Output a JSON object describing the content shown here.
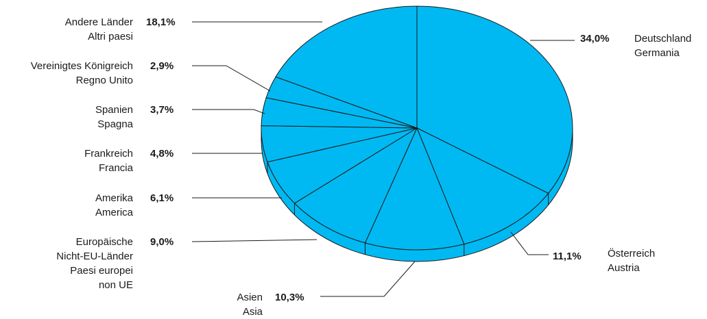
{
  "chart_data": {
    "type": "pie",
    "style": "3d",
    "colors": {
      "fill": "#00B9F2",
      "outline": "#1a1a1a"
    },
    "slices": [
      {
        "name_de": "Deutschland",
        "name_it": "Germania",
        "value": 34.0,
        "label": "34,0%"
      },
      {
        "name_de": "Österreich",
        "name_it": "Austria",
        "value": 11.1,
        "label": "11,1%"
      },
      {
        "name_de": "Asien",
        "name_it": "Asia",
        "value": 10.3,
        "label": "10,3%"
      },
      {
        "name_de": "Europäische Nicht-EU-Länder",
        "name_it": "Paesi europei non UE",
        "value": 9.0,
        "label": "9,0%"
      },
      {
        "name_de": "Amerika",
        "name_it": "America",
        "value": 6.1,
        "label": "6,1%"
      },
      {
        "name_de": "Frankreich",
        "name_it": "Francia",
        "value": 4.8,
        "label": "4,8%"
      },
      {
        "name_de": "Spanien",
        "name_it": "Spagna",
        "value": 3.7,
        "label": "3,7%"
      },
      {
        "name_de": "Vereinigtes Königreich",
        "name_it": "Regno Unito",
        "value": 2.9,
        "label": "2,9%"
      },
      {
        "name_de": "Andere Länder",
        "name_it": "Altri paesi",
        "value": 18.1,
        "label": "18,1%"
      }
    ]
  },
  "labels": {
    "deutschland": {
      "pct": "34,0%",
      "line1": "Deutschland",
      "line2": "Germania"
    },
    "oesterreich": {
      "pct": "11,1%",
      "line1": "Österreich",
      "line2": "Austria"
    },
    "asien": {
      "pct": "10,3%",
      "line1": "Asien",
      "line2": "Asia"
    },
    "europa": {
      "pct": "9,0%",
      "line1": "Europäische",
      "line2": "Nicht-EU-Länder",
      "line3": "Paesi europei",
      "line4": "non UE"
    },
    "amerika": {
      "pct": "6,1%",
      "line1": "Amerika",
      "line2": "America"
    },
    "frankreich": {
      "pct": "4,8%",
      "line1": "Frankreich",
      "line2": "Francia"
    },
    "spanien": {
      "pct": "3,7%",
      "line1": "Spanien",
      "line2": "Spagna"
    },
    "uk": {
      "pct": "2,9%",
      "line1": "Vereinigtes Königreich",
      "line2": "Regno Unito"
    },
    "andere": {
      "pct": "18,1%",
      "line1": "Andere Länder",
      "line2": "Altri paesi"
    }
  }
}
